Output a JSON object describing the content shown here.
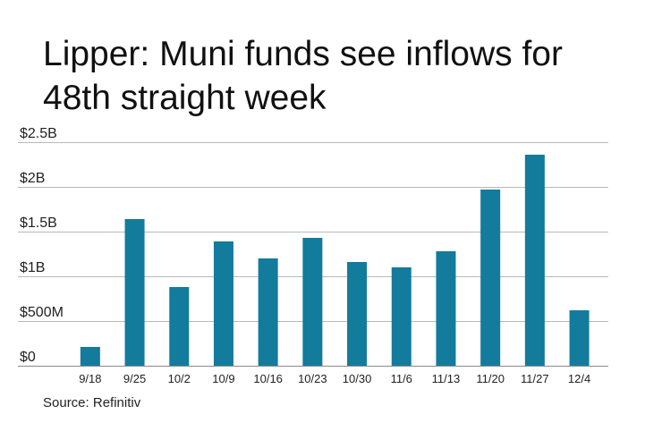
{
  "title": "Lipper: Muni funds see inflows for 48th straight week",
  "source": "Source: Refinitiv",
  "chart_data": {
    "type": "bar",
    "title": "Lipper: Muni funds see inflows for 48th straight week",
    "xlabel": "",
    "ylabel": "",
    "categories": [
      "9/18",
      "9/25",
      "10/2",
      "10/9",
      "10/16",
      "10/23",
      "10/30",
      "11/6",
      "11/13",
      "11/20",
      "11/27",
      "12/4"
    ],
    "values": [
      0.21,
      1.64,
      0.88,
      1.39,
      1.2,
      1.43,
      1.16,
      1.1,
      1.28,
      1.97,
      2.36,
      0.62
    ],
    "unit": "$B",
    "ylim": [
      0,
      2.5
    ],
    "yticks": [
      {
        "value": 0,
        "label": "$0"
      },
      {
        "value": 0.5,
        "label": "$500M"
      },
      {
        "value": 1,
        "label": "$1B"
      },
      {
        "value": 1.5,
        "label": "$1.5B"
      },
      {
        "value": 2,
        "label": "$2B"
      },
      {
        "value": 2.5,
        "label": "$2.5B"
      }
    ],
    "grid": true,
    "bar_color": "#137b9c",
    "grid_color": "#b9b9b9"
  }
}
